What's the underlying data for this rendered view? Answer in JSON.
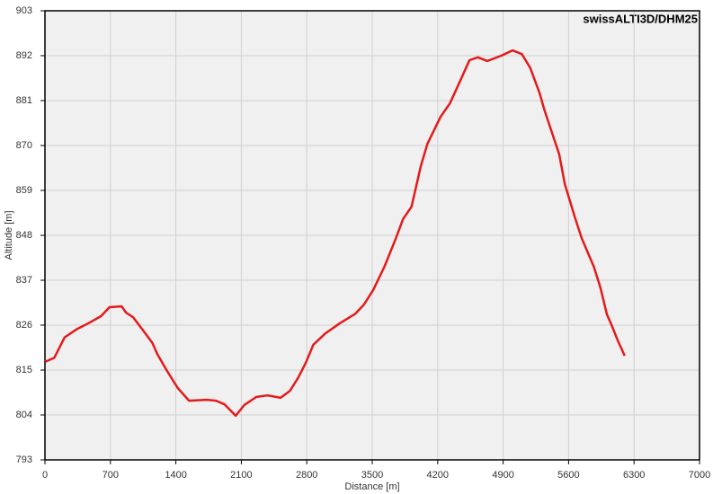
{
  "chart_data": {
    "type": "line",
    "title": "swissALTI3D/DHM25",
    "xlabel": "Distance [m]",
    "ylabel": "Altitude [m]",
    "xlim": [
      0,
      7000
    ],
    "xticks": [
      0,
      700,
      1400,
      2100,
      2800,
      3500,
      4200,
      4900,
      5600,
      6300,
      7000
    ],
    "ylim": [
      793,
      903
    ],
    "yticks": [
      793,
      804,
      815,
      826,
      837,
      848,
      859,
      870,
      881,
      892,
      903
    ],
    "grid": true,
    "series": [
      {
        "name": "swissALTI3D/DHM25",
        "color": "#e41a1c",
        "x": [
          0,
          100,
          210,
          340,
          460,
          600,
          690,
          820,
          870,
          940,
          1040,
          1150,
          1200,
          1300,
          1420,
          1540,
          1730,
          1830,
          1920,
          2040,
          2130,
          2260,
          2380,
          2520,
          2620,
          2710,
          2790,
          2870,
          3000,
          3150,
          3320,
          3410,
          3510,
          3630,
          3750,
          3830,
          3920,
          4020,
          4090,
          4230,
          4330,
          4440,
          4540,
          4630,
          4730,
          4880,
          5000,
          5100,
          5190,
          5290,
          5340,
          5500,
          5560,
          5670,
          5740,
          5870,
          5940,
          6010,
          6060,
          6130,
          6200
        ],
        "values": [
          817,
          818,
          823,
          825,
          826.4,
          828.2,
          830.4,
          830.6,
          829,
          828,
          825,
          821.6,
          819,
          815,
          810.6,
          807.5,
          807.7,
          807.5,
          806.6,
          803.8,
          806.4,
          808.4,
          808.8,
          808.2,
          809.9,
          813.2,
          816.8,
          821.2,
          824,
          826.4,
          828.8,
          831,
          834.6,
          840.3,
          847.1,
          852,
          855,
          865,
          870.4,
          877,
          880.3,
          885.8,
          890.9,
          891.6,
          890.7,
          892,
          893.3,
          892.4,
          889,
          882.8,
          878.8,
          867.8,
          860.5,
          852.2,
          847.3,
          840.3,
          835.2,
          828.6,
          826,
          822,
          818.5
        ]
      }
    ]
  }
}
